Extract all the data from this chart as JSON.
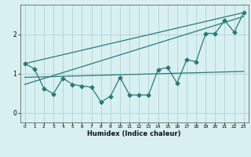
{
  "xlabel": "Humidex (Indice chaleur)",
  "bg_color": "#d8f0f0",
  "line_color": "#2a7a7a",
  "grid_color": "#aed4d4",
  "xlim": [
    -0.5,
    23.5
  ],
  "ylim": [
    -0.25,
    2.75
  ],
  "yticks": [
    0,
    1,
    2
  ],
  "xticks": [
    0,
    1,
    2,
    3,
    4,
    5,
    6,
    7,
    8,
    9,
    10,
    11,
    12,
    13,
    14,
    15,
    16,
    17,
    18,
    19,
    20,
    21,
    22,
    23
  ],
  "data_x": [
    0,
    1,
    2,
    3,
    4,
    5,
    6,
    7,
    8,
    9,
    10,
    11,
    12,
    13,
    14,
    15,
    16,
    17,
    18,
    19,
    20,
    21,
    22,
    23
  ],
  "data_y": [
    1.25,
    1.12,
    0.62,
    0.48,
    0.88,
    0.72,
    0.68,
    0.65,
    0.27,
    0.42,
    0.9,
    0.45,
    0.45,
    0.45,
    1.1,
    1.15,
    0.75,
    1.35,
    1.3,
    2.02,
    2.02,
    2.35,
    2.05,
    2.55
  ],
  "trend_lines": [
    {
      "x": [
        0,
        23
      ],
      "y": [
        1.25,
        2.55
      ]
    },
    {
      "x": [
        0,
        23
      ],
      "y": [
        0.72,
        2.45
      ]
    },
    {
      "x": [
        0,
        23
      ],
      "y": [
        0.9,
        1.05
      ]
    }
  ]
}
